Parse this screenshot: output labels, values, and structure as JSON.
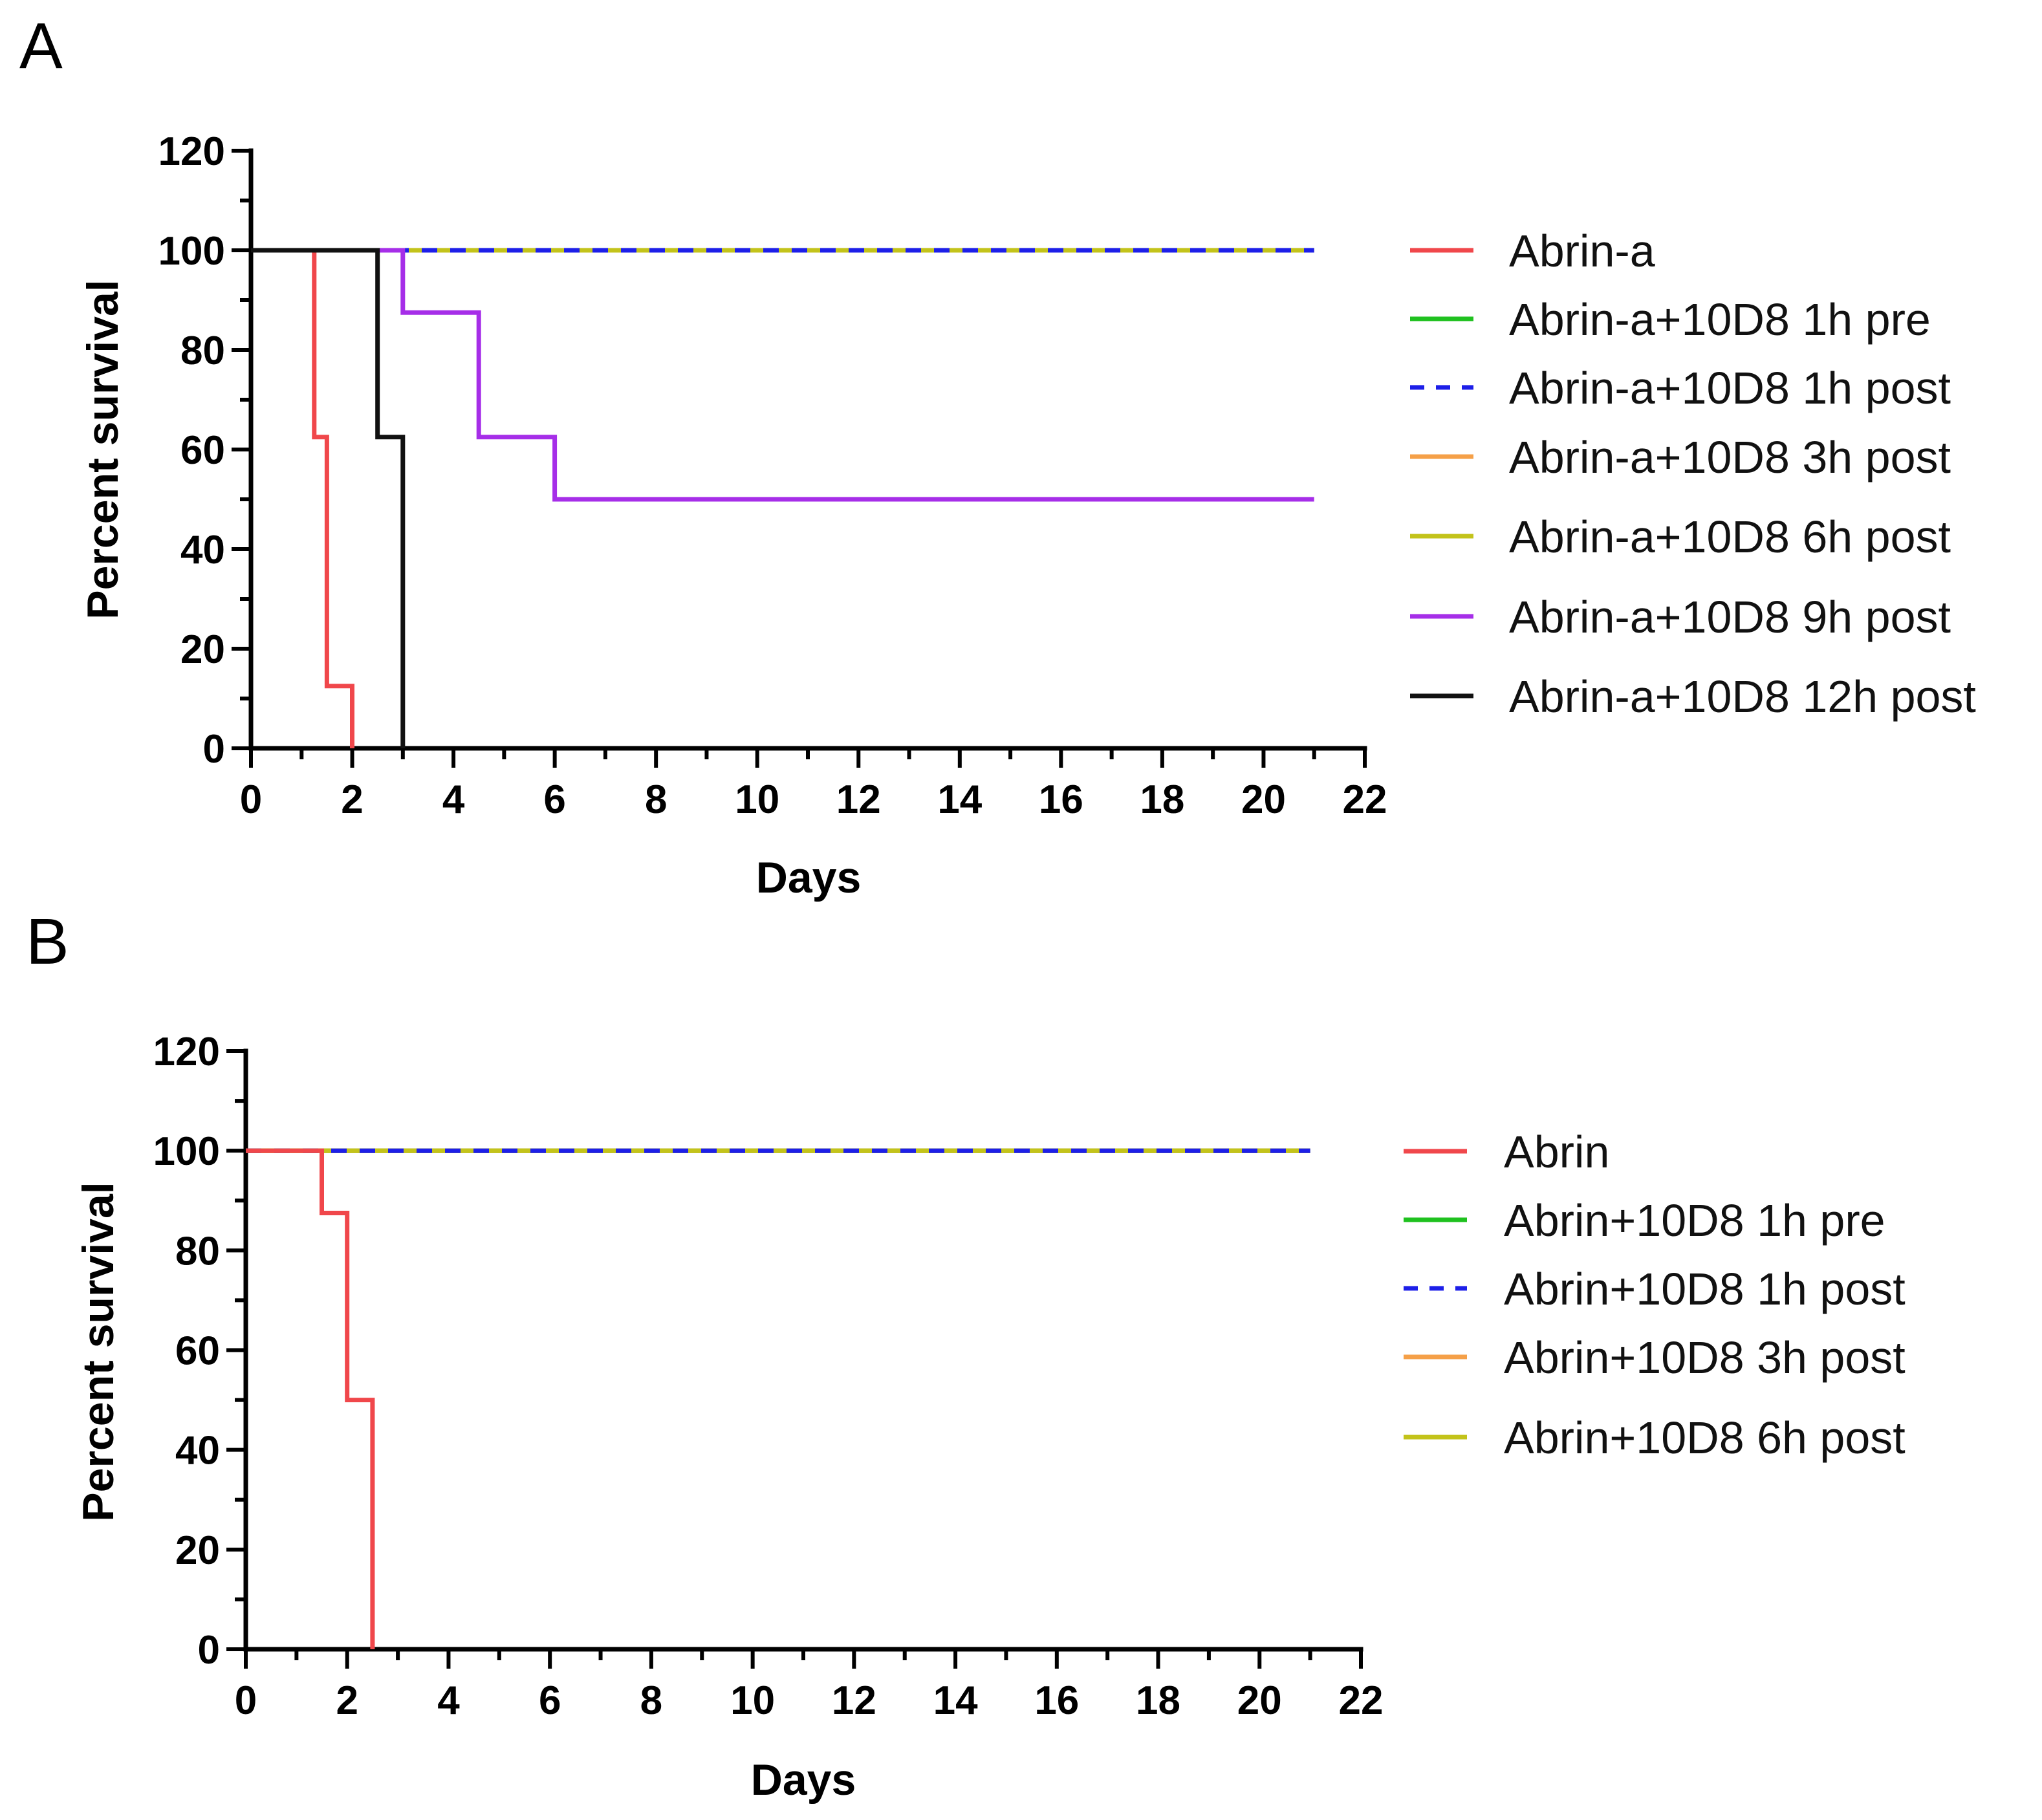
{
  "chart_data": [
    {
      "type": "line",
      "subtype": "kaplan-meier-step",
      "panel_label": "A",
      "xlabel": "Days",
      "ylabel": "Percent survival",
      "xlim": [
        0,
        22
      ],
      "ylim": [
        0,
        120
      ],
      "xticks": [
        0,
        2,
        4,
        6,
        8,
        10,
        12,
        14,
        16,
        18,
        20,
        22
      ],
      "yticks": [
        0,
        20,
        40,
        60,
        80,
        100,
        120
      ],
      "legend_position": "right",
      "series": [
        {
          "name": "Abrin-a",
          "color": "#f0474b",
          "dashed": false,
          "x": [
            0,
            1.25,
            1.25,
            1.5,
            1.5,
            2,
            2
          ],
          "y": [
            100,
            100,
            62.5,
            62.5,
            12.5,
            12.5,
            0
          ]
        },
        {
          "name": "Abrin-a+10D8 1h pre",
          "color": "#1fc11f",
          "dashed": false,
          "x": [
            0,
            21
          ],
          "y": [
            100,
            100
          ]
        },
        {
          "name": "Abrin-a+10D8 1h post",
          "color": "#1d1fe8",
          "dashed": true,
          "x": [
            0,
            21
          ],
          "y": [
            100,
            100
          ]
        },
        {
          "name": "Abrin-a+10D8 3h post",
          "color": "#f5a048",
          "dashed": false,
          "x": [
            0,
            21
          ],
          "y": [
            100,
            100
          ]
        },
        {
          "name": "Abrin-a+10D8 6h post",
          "color": "#c3c31a",
          "dashed": false,
          "x": [
            0,
            21
          ],
          "y": [
            100,
            100
          ]
        },
        {
          "name": "Abrin-a+10D8 9h post",
          "color": "#a62ee8",
          "dashed": false,
          "x": [
            0,
            3,
            3,
            4.5,
            4.5,
            6,
            6,
            21
          ],
          "y": [
            100,
            100,
            87.5,
            87.5,
            62.5,
            62.5,
            50,
            50
          ]
        },
        {
          "name": "Abrin-a+10D8 12h post",
          "color": "#111111",
          "dashed": false,
          "x": [
            0,
            2.5,
            2.5,
            3,
            3
          ],
          "y": [
            100,
            100,
            62.5,
            62.5,
            0
          ]
        }
      ]
    },
    {
      "type": "line",
      "subtype": "kaplan-meier-step",
      "panel_label": "B",
      "xlabel": "Days",
      "ylabel": "Percent survival",
      "xlim": [
        0,
        22
      ],
      "ylim": [
        0,
        120
      ],
      "xticks": [
        0,
        2,
        4,
        6,
        8,
        10,
        12,
        14,
        16,
        18,
        20,
        22
      ],
      "yticks": [
        0,
        20,
        40,
        60,
        80,
        100,
        120
      ],
      "legend_position": "right",
      "series": [
        {
          "name": "Abrin",
          "color": "#f0474b",
          "dashed": false,
          "x": [
            0,
            1.5,
            1.5,
            2,
            2,
            2.5,
            2.5
          ],
          "y": [
            100,
            100,
            87.5,
            87.5,
            50,
            50,
            0
          ]
        },
        {
          "name": "Abrin+10D8 1h pre",
          "color": "#1fc11f",
          "dashed": false,
          "x": [
            0,
            21
          ],
          "y": [
            100,
            100
          ]
        },
        {
          "name": "Abrin+10D8 1h post",
          "color": "#1d1fe8",
          "dashed": true,
          "x": [
            0,
            21
          ],
          "y": [
            100,
            100
          ]
        },
        {
          "name": "Abrin+10D8 3h post",
          "color": "#f5a048",
          "dashed": false,
          "x": [
            0,
            21
          ],
          "y": [
            100,
            100
          ]
        },
        {
          "name": "Abrin+10D8 6h post",
          "color": "#c3c31a",
          "dashed": false,
          "x": [
            0,
            21
          ],
          "y": [
            100,
            100
          ]
        }
      ]
    }
  ]
}
